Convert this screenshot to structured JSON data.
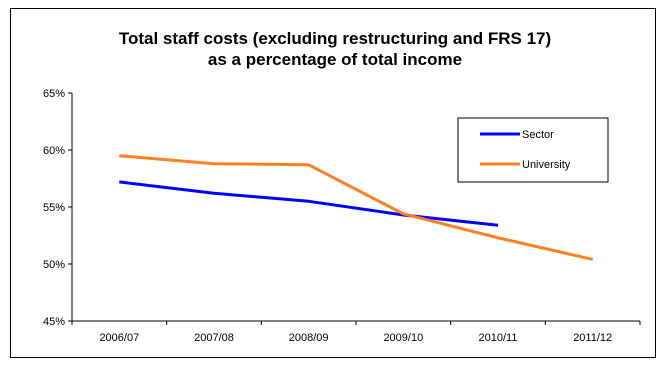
{
  "chart_data": {
    "type": "line",
    "title_lines": [
      "Total staff costs (excluding restructuring  and FRS 17)",
      "as a percentage  of total income"
    ],
    "categories": [
      "2006/07",
      "2007/08",
      "2008/09",
      "2009/10",
      "2010/11",
      "2011/12"
    ],
    "y_ticks": [
      "45%",
      "50%",
      "55%",
      "60%",
      "65%"
    ],
    "ylim": [
      45,
      65
    ],
    "y_unit": "%",
    "grid": false,
    "legend_position": "top-right",
    "series": [
      {
        "name": "Sector",
        "color": "#0000ff",
        "values": [
          57.2,
          56.2,
          55.5,
          54.3,
          53.4,
          null
        ]
      },
      {
        "name": "University",
        "color": "#ff7f24",
        "values": [
          59.5,
          58.8,
          58.7,
          54.4,
          52.3,
          50.4
        ]
      }
    ]
  }
}
